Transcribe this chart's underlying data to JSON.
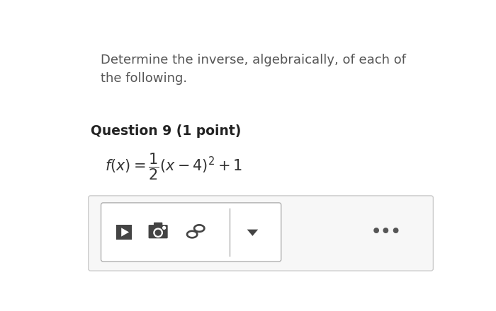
{
  "background_color": "#ffffff",
  "title_text": "Determine the inverse, algebraically, of each of\nthe following.",
  "title_fontsize": 13.0,
  "title_color": "#555555",
  "question_text": "Question 9 (1 point)",
  "question_fontsize": 13.5,
  "question_color": "#222222",
  "formula_fontsize": 15,
  "formula_color": "#333333",
  "outer_box_color": "#f7f7f7",
  "outer_box_edge": "#cccccc",
  "inner_box_color": "#ffffff",
  "inner_box_edge": "#b0b0b0",
  "icon_color": "#444444",
  "dots_color": "#555555",
  "dots_fontsize": 16
}
